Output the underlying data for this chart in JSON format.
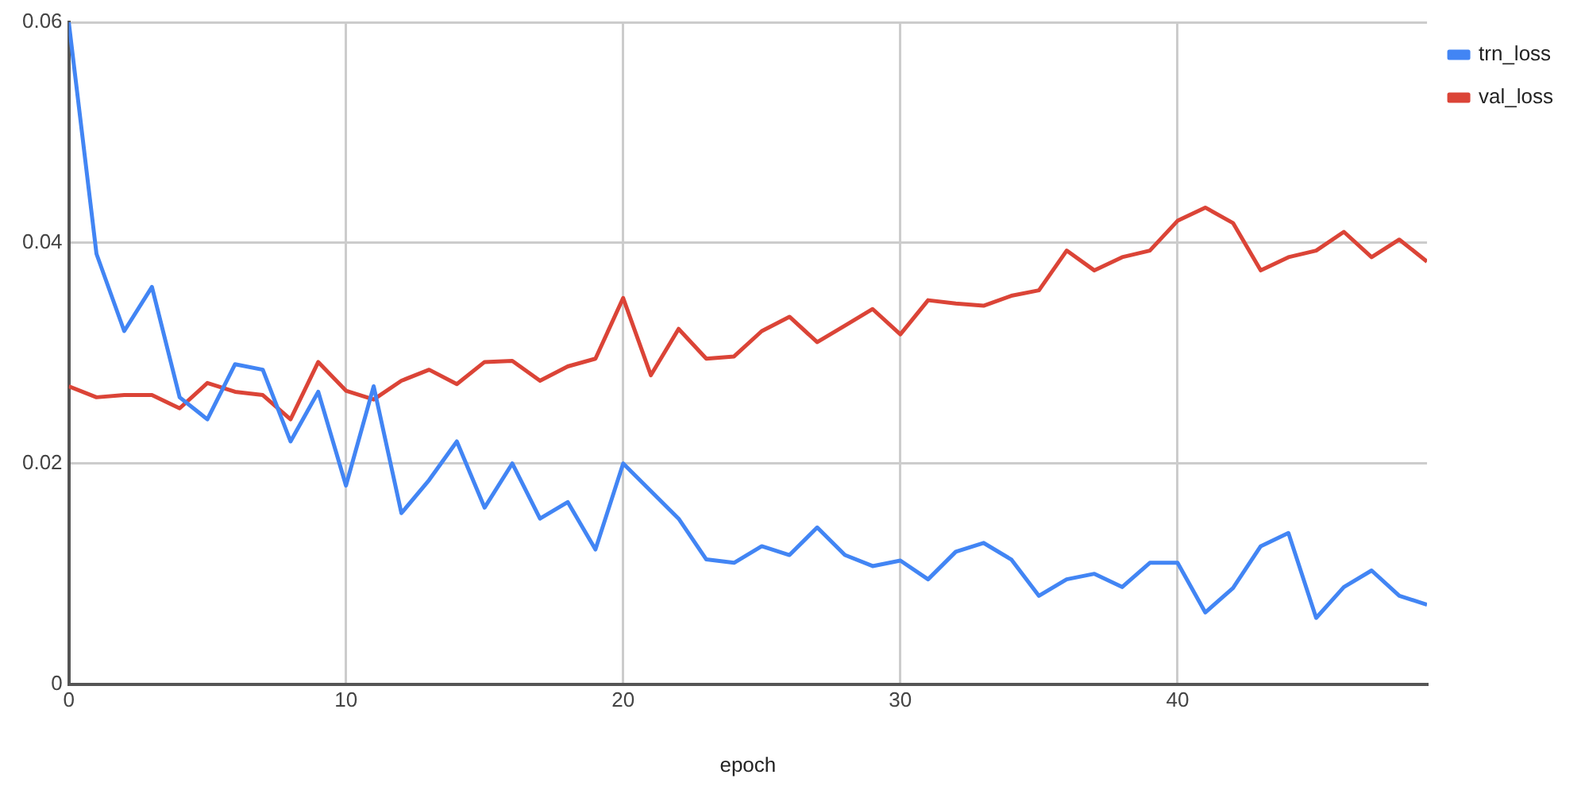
{
  "chart_data": {
    "type": "line",
    "xlabel": "epoch",
    "xlim": [
      0,
      49
    ],
    "xticks": [
      0,
      10,
      20,
      30,
      40
    ],
    "ylim": [
      0,
      0.06
    ],
    "yticks": [
      0,
      0.02,
      0.04,
      0.06
    ],
    "grid": true,
    "legend": "top right",
    "marker": "none",
    "line_style": "solid",
    "x": [
      0,
      1,
      2,
      3,
      4,
      5,
      6,
      7,
      8,
      9,
      10,
      11,
      12,
      13,
      14,
      15,
      16,
      17,
      18,
      19,
      20,
      21,
      22,
      23,
      24,
      25,
      26,
      27,
      28,
      29,
      30,
      31,
      32,
      33,
      34,
      35,
      36,
      37,
      38,
      39,
      40,
      41,
      42,
      43,
      44,
      45,
      46,
      47,
      48,
      49
    ],
    "series": [
      {
        "name": "trn_loss",
        "color": "#4285f4",
        "values": [
          0.06,
          0.039,
          0.032,
          0.036,
          0.026,
          0.024,
          0.029,
          0.0285,
          0.022,
          0.0265,
          0.018,
          0.027,
          0.0155,
          0.0185,
          0.022,
          0.016,
          0.02,
          0.015,
          0.0165,
          0.0122,
          0.02,
          0.0175,
          0.015,
          0.0113,
          0.011,
          0.0125,
          0.0117,
          0.0142,
          0.0117,
          0.0107,
          0.0112,
          0.0095,
          0.012,
          0.0128,
          0.0113,
          0.008,
          0.0095,
          0.01,
          0.0088,
          0.011,
          0.011,
          0.0065,
          0.0087,
          0.0125,
          0.0137,
          0.006,
          0.0088,
          0.0103,
          0.008,
          0.0072
        ]
      },
      {
        "name": "val_loss",
        "color": "#db4437",
        "values": [
          0.027,
          0.026,
          0.0262,
          0.0262,
          0.025,
          0.0273,
          0.0265,
          0.0262,
          0.024,
          0.0292,
          0.0266,
          0.0258,
          0.0275,
          0.0285,
          0.0272,
          0.0292,
          0.0293,
          0.0275,
          0.0288,
          0.0295,
          0.035,
          0.028,
          0.0322,
          0.0295,
          0.0297,
          0.032,
          0.0333,
          0.031,
          0.0325,
          0.034,
          0.0317,
          0.0348,
          0.0345,
          0.0343,
          0.0352,
          0.0357,
          0.0393,
          0.0375,
          0.0387,
          0.0393,
          0.042,
          0.0432,
          0.0418,
          0.0375,
          0.0387,
          0.0393,
          0.041,
          0.0387,
          0.0403,
          0.0383
        ]
      }
    ]
  }
}
